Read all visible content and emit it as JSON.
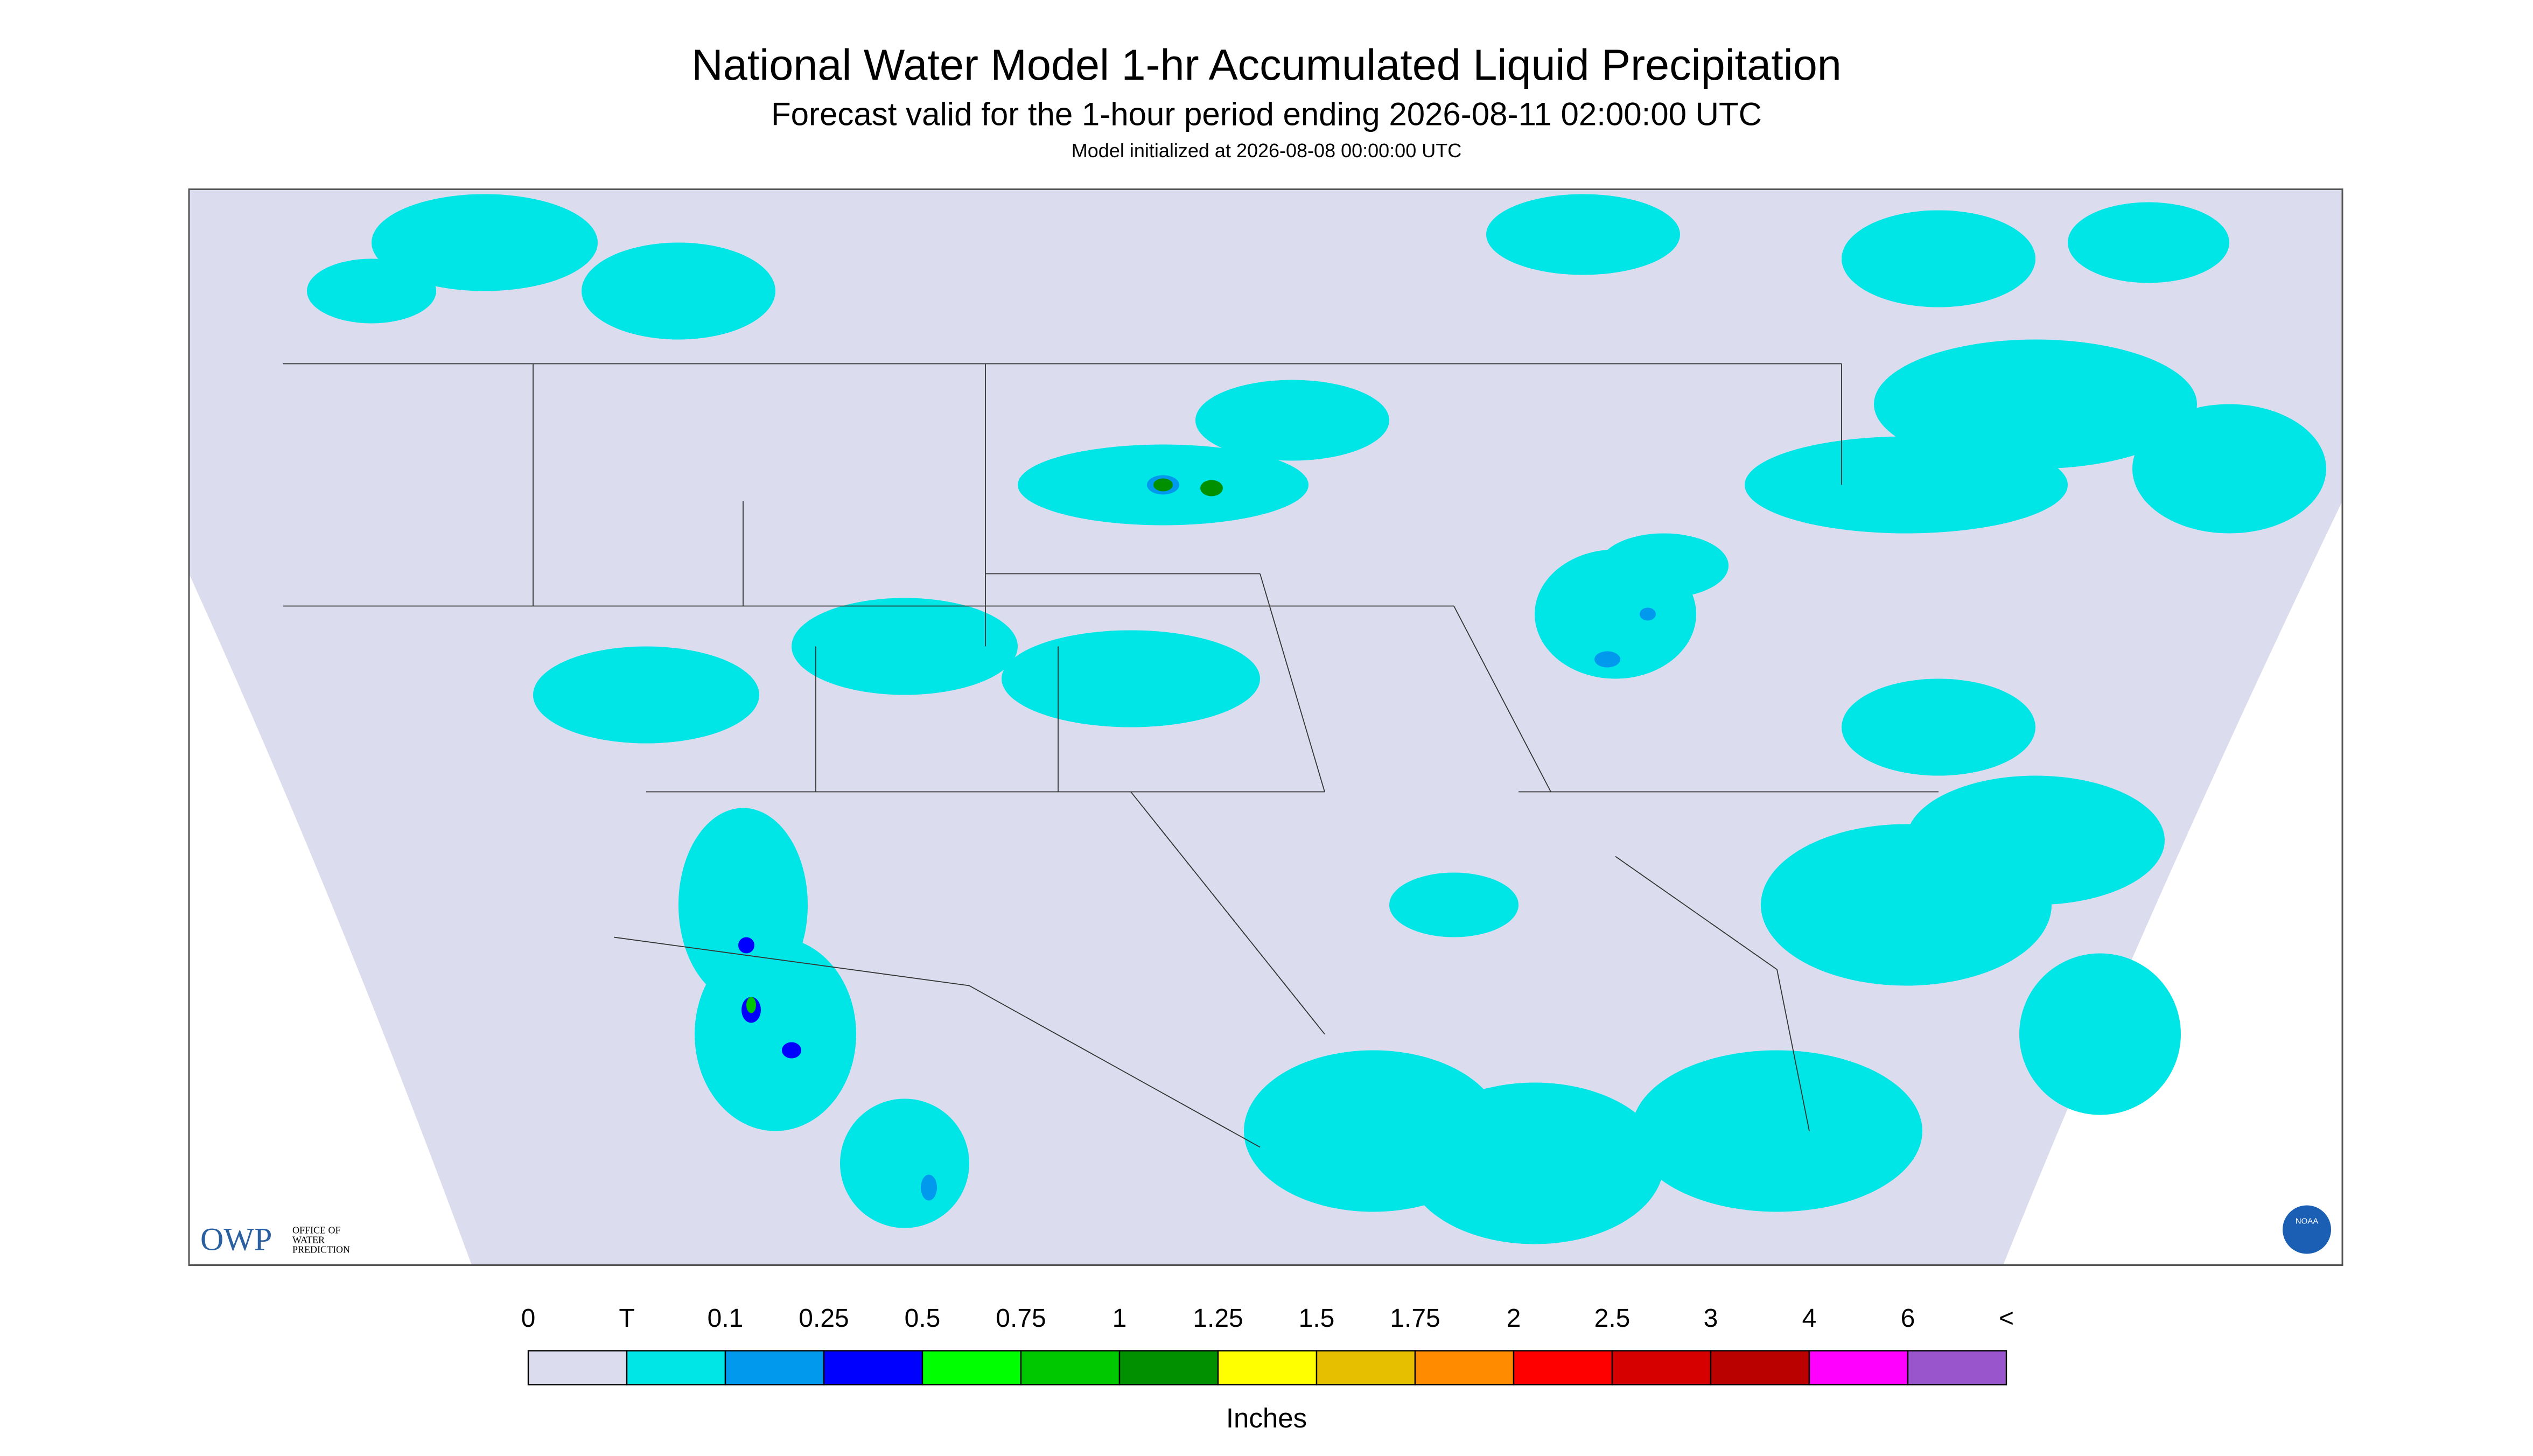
{
  "header": {
    "title": "National Water Model 1-hr Accumulated Liquid Precipitation",
    "subtitle": "Forecast valid for the 1-hour period ending 2026-08-11 02:00:00 UTC",
    "note": "Model initialized at 2026-08-08 00:00:00 UTC"
  },
  "logo": {
    "owp": "OWP",
    "office": [
      "OFFICE OF",
      "WATER",
      "PREDICTION"
    ],
    "noaa": "NOAA"
  },
  "legend": {
    "labels": [
      "0",
      "T",
      "0.1",
      "0.25",
      "0.5",
      "0.75",
      "1",
      "1.25",
      "1.5",
      "1.75",
      "2",
      "2.5",
      "3",
      "4",
      "6",
      "<"
    ],
    "colors": [
      "#dcdcef",
      "#00e5e5",
      "#0099ee",
      "#0000ff",
      "#00ff00",
      "#00c800",
      "#009000",
      "#ffff00",
      "#e6c000",
      "#ff8c00",
      "#ff0000",
      "#d70000",
      "#bb0000",
      "#ff00ff",
      "#9955cc"
    ],
    "units": "Inches"
  }
}
